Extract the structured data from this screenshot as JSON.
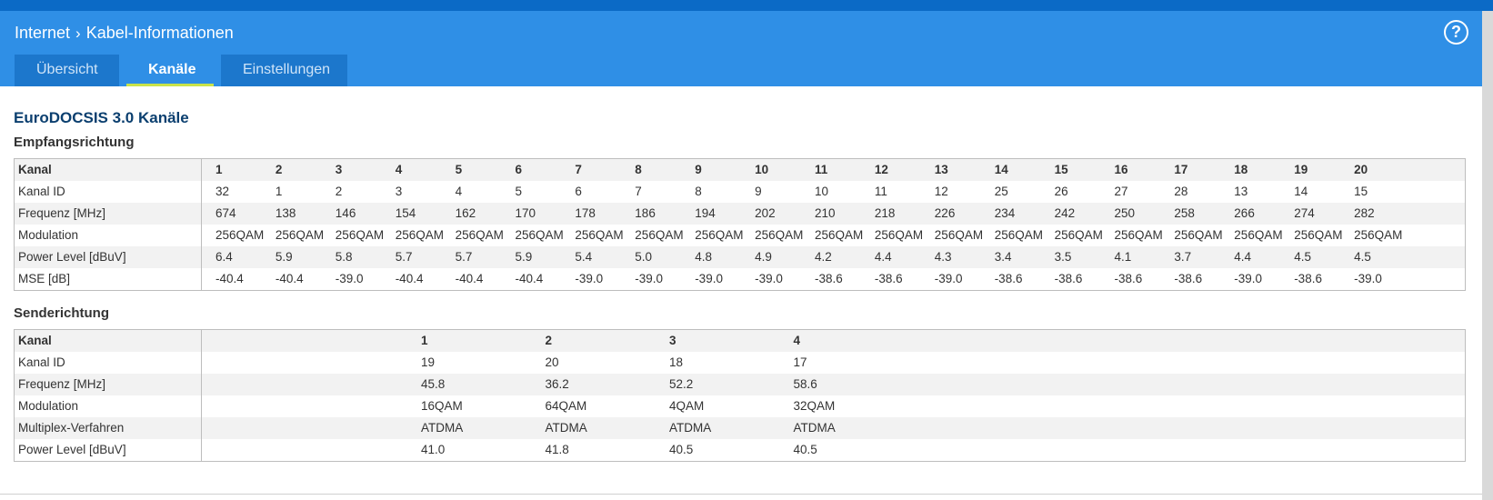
{
  "breadcrumb": {
    "parent": "Internet",
    "separator": "›",
    "current": "Kabel-Informationen"
  },
  "help_label": "?",
  "tabs": [
    {
      "label": "Übersicht",
      "active": false
    },
    {
      "label": "Kanäle",
      "active": true
    },
    {
      "label": "Einstellungen",
      "active": false
    }
  ],
  "section_title": "EuroDOCSIS 3.0 Kanäle",
  "downstream": {
    "title": "Empfangsrichtung",
    "rows": [
      {
        "label": "Kanal",
        "values": [
          "1",
          "2",
          "3",
          "4",
          "5",
          "6",
          "7",
          "8",
          "9",
          "10",
          "11",
          "12",
          "13",
          "14",
          "15",
          "16",
          "17",
          "18",
          "19",
          "20"
        ]
      },
      {
        "label": "Kanal ID",
        "values": [
          "32",
          "1",
          "2",
          "3",
          "4",
          "5",
          "6",
          "7",
          "8",
          "9",
          "10",
          "11",
          "12",
          "25",
          "26",
          "27",
          "28",
          "13",
          "14",
          "15"
        ]
      },
      {
        "label": "Frequenz [MHz]",
        "values": [
          "674",
          "138",
          "146",
          "154",
          "162",
          "170",
          "178",
          "186",
          "194",
          "202",
          "210",
          "218",
          "226",
          "234",
          "242",
          "250",
          "258",
          "266",
          "274",
          "282"
        ]
      },
      {
        "label": "Modulation",
        "values": [
          "256QAM",
          "256QAM",
          "256QAM",
          "256QAM",
          "256QAM",
          "256QAM",
          "256QAM",
          "256QAM",
          "256QAM",
          "256QAM",
          "256QAM",
          "256QAM",
          "256QAM",
          "256QAM",
          "256QAM",
          "256QAM",
          "256QAM",
          "256QAM",
          "256QAM",
          "256QAM"
        ]
      },
      {
        "label": "Power Level [dBuV]",
        "values": [
          "6.4",
          "5.9",
          "5.8",
          "5.7",
          "5.7",
          "5.9",
          "5.4",
          "5.0",
          "4.8",
          "4.9",
          "4.2",
          "4.4",
          "4.3",
          "3.4",
          "3.5",
          "4.1",
          "3.7",
          "4.4",
          "4.5",
          "4.5"
        ]
      },
      {
        "label": "MSE [dB]",
        "values": [
          "-40.4",
          "-40.4",
          "-39.0",
          "-40.4",
          "-40.4",
          "-40.4",
          "-39.0",
          "-39.0",
          "-39.0",
          "-39.0",
          "-38.6",
          "-38.6",
          "-39.0",
          "-38.6",
          "-38.6",
          "-38.6",
          "-38.6",
          "-39.0",
          "-38.6",
          "-39.0"
        ]
      }
    ]
  },
  "upstream": {
    "title": "Senderichtung",
    "rows": [
      {
        "label": "Kanal",
        "values": [
          "1",
          "2",
          "3",
          "4"
        ]
      },
      {
        "label": "Kanal ID",
        "values": [
          "19",
          "20",
          "18",
          "17"
        ]
      },
      {
        "label": "Frequenz [MHz]",
        "values": [
          "45.8",
          "36.2",
          "52.2",
          "58.6"
        ]
      },
      {
        "label": "Modulation",
        "values": [
          "16QAM",
          "64QAM",
          "4QAM",
          "32QAM"
        ]
      },
      {
        "label": "Multiplex-Verfahren",
        "values": [
          "ATDMA",
          "ATDMA",
          "ATDMA",
          "ATDMA"
        ]
      },
      {
        "label": "Power Level [dBuV]",
        "values": [
          "41.0",
          "41.8",
          "40.5",
          "40.5"
        ]
      }
    ]
  }
}
